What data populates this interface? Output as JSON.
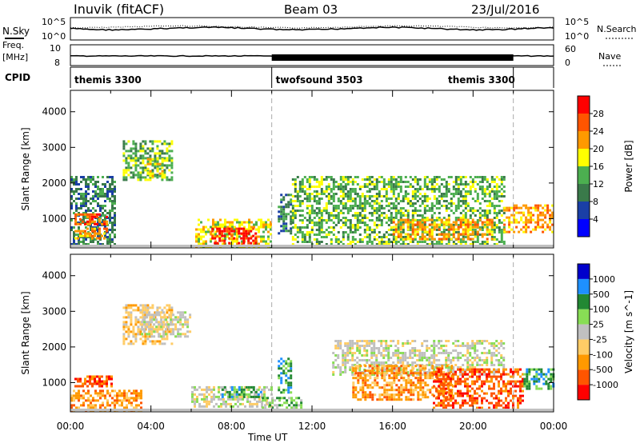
{
  "header": {
    "station": "Inuvik (fitACF)",
    "beam": "Beam 03",
    "date": "23/Jul/2016"
  },
  "noise_panel": {
    "left_label": "N.Sky",
    "right_label": "N.Search",
    "left_ticks": [
      "10^5",
      "10^0"
    ],
    "right_ticks": [
      "10^5",
      "10^0"
    ]
  },
  "freq_panel": {
    "left_label": "Freq.",
    "left_unit": "[MHz]",
    "left_ticks": [
      "10",
      "8"
    ],
    "right_label": "Nave",
    "right_ticks": [
      "60",
      "0"
    ]
  },
  "cpid": {
    "label": "CPID",
    "segments": [
      {
        "name": "themis 3300",
        "start": 0,
        "end": 10
      },
      {
        "name": "twofsound 3503",
        "start": 10,
        "end": 22
      },
      {
        "name": "themis 3300",
        "start": 22,
        "end": 24
      }
    ]
  },
  "colors": {
    "power": [
      "#0000ff",
      "#1a3fa6",
      "#3a7a4a",
      "#4caf50",
      "#ffff00",
      "#ff9900",
      "#ff5500",
      "#ff0000"
    ],
    "velocity": [
      "#ff0000",
      "#ff5500",
      "#ff9900",
      "#ffcc66",
      "#c0c0c0",
      "#88dd55",
      "#228833",
      "#1e90ff",
      "#0000cc"
    ],
    "ground_scatter": "#c0c0c0"
  },
  "chart_data": [
    {
      "type": "heatmap",
      "title": "",
      "xlabel": "",
      "ylabel": "Slant Range [km]",
      "x_range_hours": [
        0,
        24
      ],
      "ylim": [
        180,
        4600
      ],
      "y_ticks": [
        "1000",
        "2000",
        "3000",
        "4000"
      ],
      "colorbar": {
        "label": "Power [dB]",
        "ticks": [
          "4",
          "8",
          "12",
          "16",
          "20",
          "24",
          "28"
        ],
        "range": [
          0,
          30
        ]
      },
      "regions": [
        {
          "t0": 0.0,
          "t1": 2.2,
          "r0": 250,
          "r1": 2200,
          "level": 2
        },
        {
          "t0": 0.2,
          "t1": 1.8,
          "r0": 850,
          "r1": 1150,
          "level": 6
        },
        {
          "t0": 0.2,
          "t1": 1.8,
          "r0": 450,
          "r1": 750,
          "level": 5
        },
        {
          "t0": 2.6,
          "t1": 5.0,
          "r0": 2100,
          "r1": 3200,
          "level": 3
        },
        {
          "t0": 3.8,
          "t1": 4.6,
          "r0": 2200,
          "r1": 2700,
          "level": 4
        },
        {
          "t0": 6.2,
          "t1": 9.9,
          "r0": 250,
          "r1": 1000,
          "level": 4
        },
        {
          "t0": 7.0,
          "t1": 9.2,
          "r0": 280,
          "r1": 750,
          "level": 7
        },
        {
          "t0": 10.3,
          "t1": 11.0,
          "r0": 600,
          "r1": 1700,
          "level": 2
        },
        {
          "t0": 11.0,
          "t1": 21.5,
          "r0": 250,
          "r1": 2200,
          "level": 3
        },
        {
          "t0": 16.0,
          "t1": 21.0,
          "r0": 400,
          "r1": 1000,
          "level": 5
        },
        {
          "t0": 21.5,
          "t1": 24.0,
          "r0": 600,
          "r1": 1400,
          "level": 5
        }
      ]
    },
    {
      "type": "heatmap",
      "title": "",
      "xlabel": "Time UT",
      "ylabel": "Slant Range [km]",
      "x_range_hours": [
        0,
        24
      ],
      "x_ticks": [
        "00:00",
        "04:00",
        "08:00",
        "12:00",
        "16:00",
        "20:00",
        "00:00"
      ],
      "ylim": [
        180,
        4600
      ],
      "y_ticks": [
        "1000",
        "2000",
        "3000",
        "4000"
      ],
      "colorbar": {
        "label": "Velocity [m s^-1]",
        "ticks": [
          "-1000",
          "-500",
          "-100",
          "-25",
          "25",
          "100",
          "500",
          "1000"
        ]
      },
      "regions": [
        {
          "t0": 0.0,
          "t1": 3.5,
          "r0": 250,
          "r1": 800,
          "level": 2
        },
        {
          "t0": 0.2,
          "t1": 2.0,
          "r0": 900,
          "r1": 1200,
          "level": 1
        },
        {
          "t0": 2.6,
          "t1": 5.0,
          "r0": 2100,
          "r1": 3200,
          "level": 3
        },
        {
          "t0": 3.5,
          "t1": 6.0,
          "r0": 2300,
          "r1": 3000,
          "level": 4
        },
        {
          "t0": 6.0,
          "t1": 10.0,
          "r0": 300,
          "r1": 900,
          "level": 4
        },
        {
          "t0": 7.5,
          "t1": 9.5,
          "r0": 600,
          "r1": 900,
          "level": 6
        },
        {
          "t0": 9.5,
          "t1": 11.5,
          "r0": 300,
          "r1": 600,
          "level": 5
        },
        {
          "t0": 10.3,
          "t1": 11.0,
          "r0": 700,
          "r1": 1700,
          "level": 6
        },
        {
          "t0": 13.0,
          "t1": 21.5,
          "r0": 1200,
          "r1": 2200,
          "level": 4
        },
        {
          "t0": 14.0,
          "t1": 19.0,
          "r0": 500,
          "r1": 1500,
          "level": 2
        },
        {
          "t0": 18.0,
          "t1": 22.5,
          "r0": 300,
          "r1": 1400,
          "level": 1
        },
        {
          "t0": 22.5,
          "t1": 24.0,
          "r0": 800,
          "r1": 1400,
          "level": 6
        }
      ]
    }
  ]
}
